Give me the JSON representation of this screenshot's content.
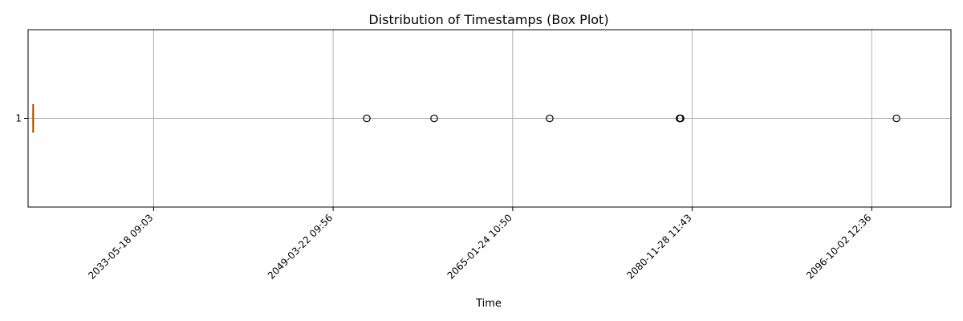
{
  "chart_data": {
    "type": "boxplot",
    "title": "Distribution of Timestamps (Box Plot)",
    "xlabel": "Time",
    "ylabel": "",
    "orientation": "horizontal",
    "grid": true,
    "y_categories": [
      "1"
    ],
    "x_ticks": [
      "2033-05-18 09:03",
      "2049-03-22 09:56",
      "2065-01-24 10:50",
      "2080-11-28 11:43",
      "2096-10-02 12:36"
    ],
    "xlim": [
      "2022-04-20 00:00",
      "2103-10-02 00:00"
    ],
    "box": {
      "category": "1",
      "whisker_low": "2022-09-10",
      "q1": "2022-09-15",
      "median": "2022-09-18",
      "q3": "2022-09-22",
      "whisker_high": "2022-09-27"
    },
    "outliers": [
      "2052-03-10",
      "2058-02-20",
      "2068-05-01",
      "2079-10-20",
      "2079-11-05",
      "2079-11-20",
      "2098-12-10"
    ],
    "colors": {
      "box": "#000000",
      "median": "#ff7f0e",
      "grid": "#b0b0b0",
      "outlier": "#000000"
    }
  }
}
